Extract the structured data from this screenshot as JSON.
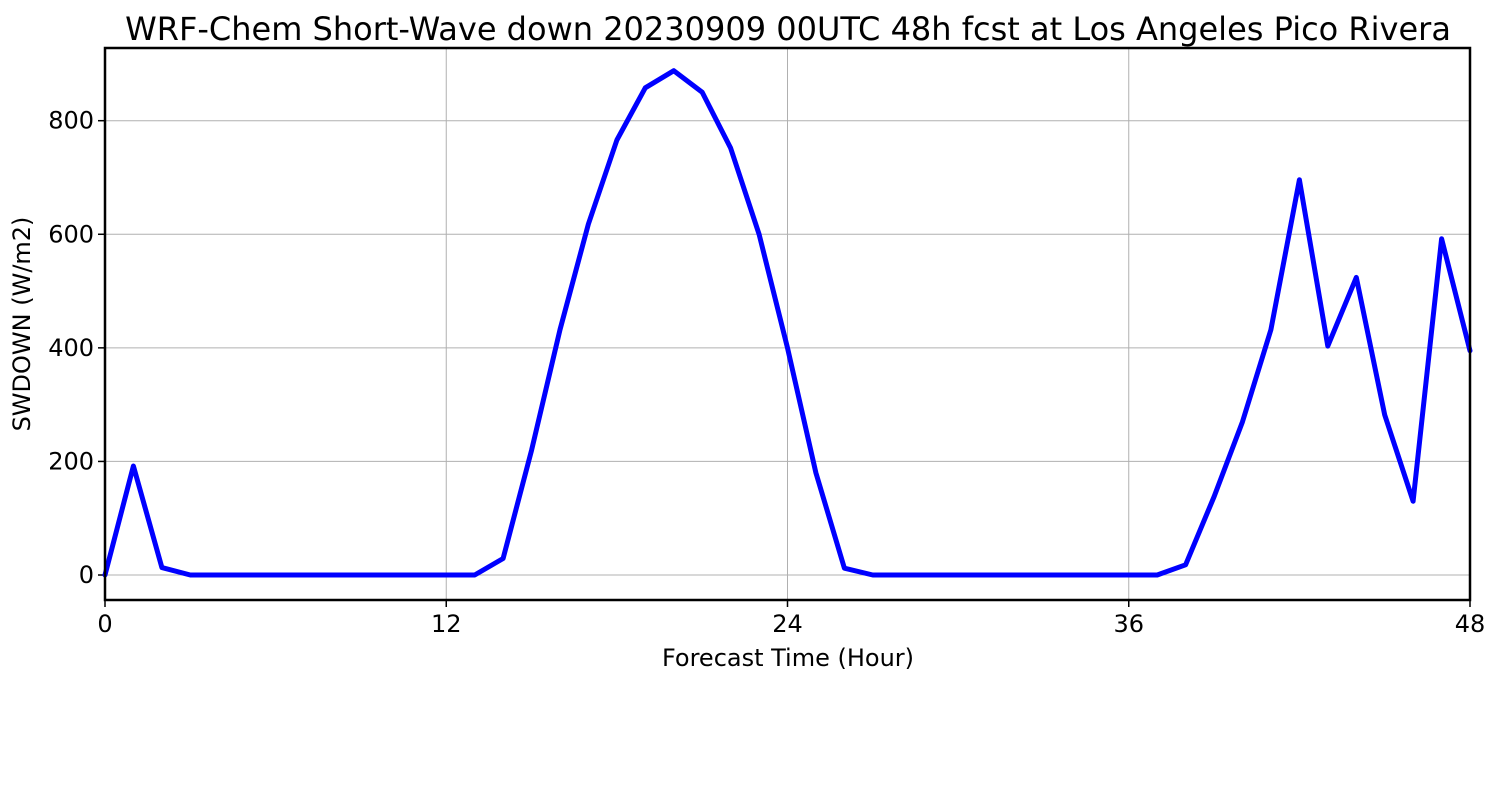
{
  "chart_data": {
    "type": "line",
    "title": "WRF-Chem Short-Wave down  20230909 00UTC 48h fcst at Los Angeles Pico Rivera",
    "xlabel": "Forecast Time (Hour)",
    "ylabel": "SWDOWN  (W/m2)",
    "xlim": [
      0,
      48
    ],
    "ylim": [
      -44,
      928
    ],
    "xticks": [
      0,
      12,
      24,
      36,
      48
    ],
    "yticks": [
      0,
      200,
      400,
      600,
      800
    ],
    "grid": true,
    "line_color": "#0000ff",
    "series": [
      {
        "x": [
          0,
          1,
          2,
          3,
          4,
          5,
          6,
          7,
          8,
          9,
          10,
          11,
          12,
          13,
          14,
          15,
          16,
          17,
          18,
          19,
          20,
          21,
          22,
          23,
          24,
          25,
          26,
          27,
          28,
          29,
          30,
          31,
          32,
          33,
          34,
          35,
          36,
          37,
          38,
          39,
          40,
          41,
          42,
          43,
          44,
          45,
          46,
          47,
          48
        ],
        "values": [
          0,
          192,
          13,
          0,
          0,
          0,
          0,
          0,
          0,
          0,
          0,
          0,
          0,
          0,
          29,
          220,
          432,
          618,
          766,
          858,
          888,
          850,
          752,
          600,
          400,
          180,
          12,
          0,
          0,
          0,
          0,
          0,
          0,
          0,
          0,
          0,
          0,
          0,
          18,
          138,
          270,
          432,
          696,
          403,
          524,
          282,
          130,
          592,
          395
        ]
      }
    ]
  }
}
